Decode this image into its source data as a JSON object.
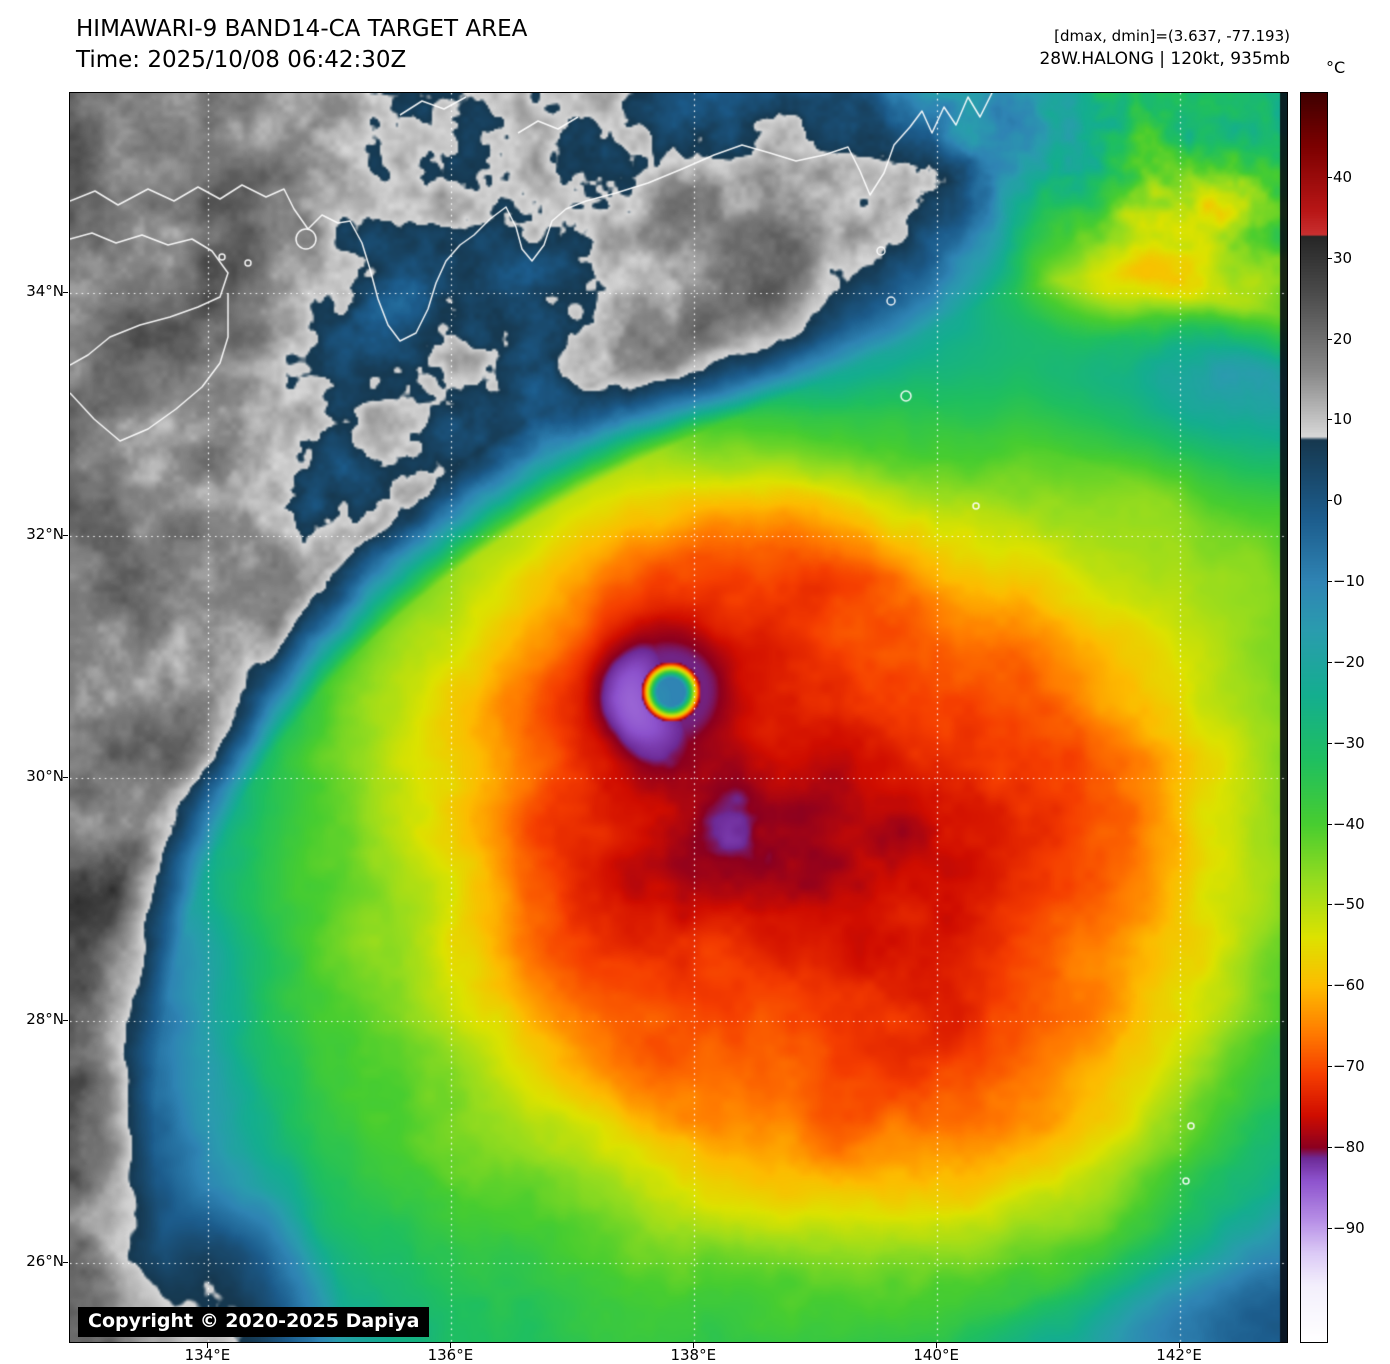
{
  "header": {
    "title": "HIMAWARI-9 BAND14-CA TARGET AREA",
    "time": "Time: 2025/10/08 06:42:30Z",
    "dmax_dmin": "[dmax, dmin]=(3.637, -77.193)",
    "storm_info": "28W.HALONG | 120kt, 935mb"
  },
  "copyright": "Copyright © 2020-2025 Dapiya",
  "chart_data": {
    "type": "heatmap",
    "title": "HIMAWARI-9 BAND14-CA TARGET AREA",
    "time_utc": "2025/10/08 06:42:30Z",
    "satellite": "HIMAWARI-9",
    "band": "BAND14-CA",
    "product": "TARGET AREA",
    "dmax_c": 3.637,
    "dmin_c": -77.193,
    "storm": {
      "designation": "28W",
      "name": "HALONG",
      "intensity_kt": 120,
      "pressure_mb": 935,
      "eye_lon_e": 137.8,
      "eye_lat_n": 30.7
    },
    "axes": {
      "lon_min_e": 132.86,
      "lon_max_e": 142.88,
      "lat_min_n": 25.35,
      "lat_max_n": 35.65,
      "x_ticks": [
        {
          "value": 134,
          "label": "134°E"
        },
        {
          "value": 136,
          "label": "136°E"
        },
        {
          "value": 138,
          "label": "138°E"
        },
        {
          "value": 140,
          "label": "140°E"
        },
        {
          "value": 142,
          "label": "142°E"
        }
      ],
      "y_ticks": [
        {
          "value": 34,
          "label": "34°N"
        },
        {
          "value": 32,
          "label": "32°N"
        },
        {
          "value": 30,
          "label": "30°N"
        },
        {
          "value": 28,
          "label": "28°N"
        },
        {
          "value": 26,
          "label": "26°N"
        }
      ],
      "grid_style": "dotted-white"
    },
    "colorbar": {
      "unit": "°C",
      "max": 50.5,
      "min": -104,
      "ticks": [
        {
          "value": 40,
          "label": "40"
        },
        {
          "value": 30,
          "label": "30"
        },
        {
          "value": 20,
          "label": "20"
        },
        {
          "value": 10,
          "label": "10"
        },
        {
          "value": 0,
          "label": "0"
        },
        {
          "value": -10,
          "label": "−10"
        },
        {
          "value": -20,
          "label": "−20"
        },
        {
          "value": -30,
          "label": "−30"
        },
        {
          "value": -40,
          "label": "−40"
        },
        {
          "value": -50,
          "label": "−50"
        },
        {
          "value": -60,
          "label": "−60"
        },
        {
          "value": -70,
          "label": "−70"
        },
        {
          "value": -80,
          "label": "−80"
        },
        {
          "value": -90,
          "label": "−90"
        }
      ],
      "stops": [
        [
          50.5,
          "#400000"
        ],
        [
          44,
          "#7c0000"
        ],
        [
          36,
          "#b81616"
        ],
        [
          33,
          "#c93030"
        ],
        [
          32.8,
          "#262626"
        ],
        [
          26,
          "#4a4a4a"
        ],
        [
          16,
          "#888888"
        ],
        [
          8,
          "#d8d8d8"
        ],
        [
          7.6,
          "#16384f"
        ],
        [
          -2,
          "#1c5c8c"
        ],
        [
          -10,
          "#2f84b4"
        ],
        [
          -16,
          "#2a9cae"
        ],
        [
          -24,
          "#14ae8f"
        ],
        [
          -32,
          "#1fbf60"
        ],
        [
          -40,
          "#48cd30"
        ],
        [
          -47,
          "#97dc1e"
        ],
        [
          -54,
          "#dde200"
        ],
        [
          -60,
          "#fdbc00"
        ],
        [
          -66,
          "#ff7900"
        ],
        [
          -71,
          "#f53d00"
        ],
        [
          -76,
          "#d00d00"
        ],
        [
          -80,
          "#8c0020"
        ],
        [
          -81.3,
          "#6d2a96"
        ],
        [
          -84,
          "#8d52cd"
        ],
        [
          -89,
          "#b78fe6"
        ],
        [
          -93,
          "#dbc9f6"
        ],
        [
          -97,
          "#f3effc"
        ],
        [
          -104,
          "#ffffff"
        ]
      ]
    }
  }
}
